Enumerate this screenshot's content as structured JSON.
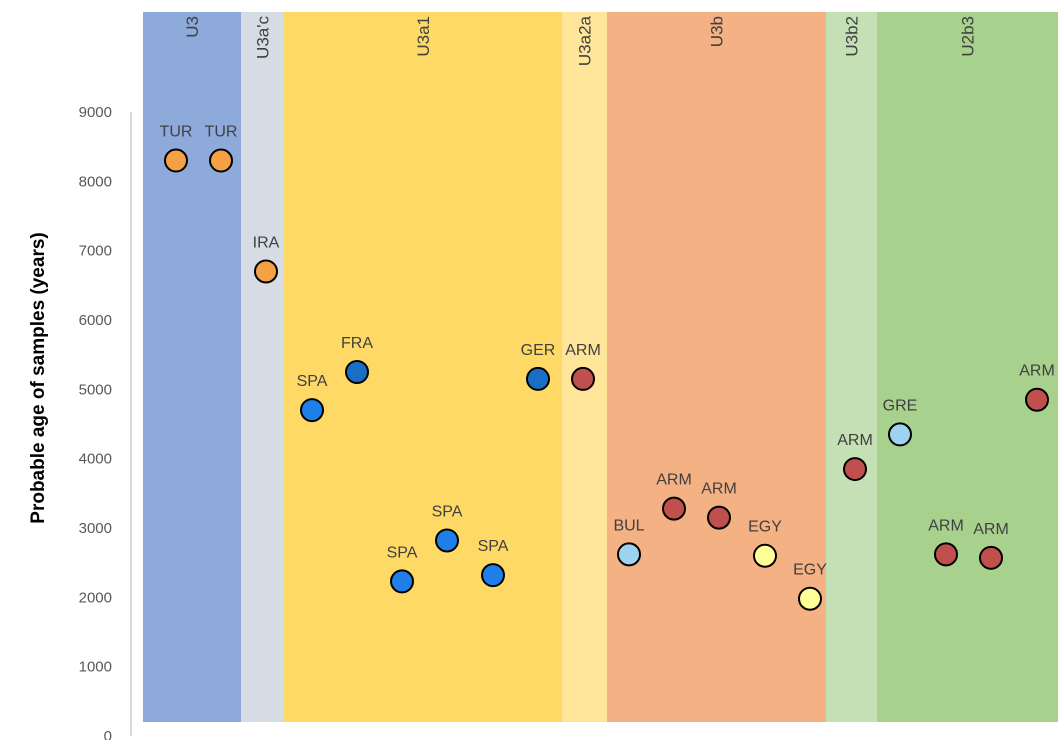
{
  "chart_data": {
    "type": "scatter",
    "title": "",
    "xlabel": "",
    "ylabel": "Probable age of samples (years)",
    "ylim": [
      0,
      9000
    ],
    "yticks": [
      0,
      1000,
      2000,
      3000,
      4000,
      5000,
      6000,
      7000,
      8000,
      9000
    ],
    "grid": false,
    "legend": "none",
    "haplogroups": [
      {
        "name": "U3",
        "color": "#8eaadb"
      },
      {
        "name": "U3a'c",
        "color": "#d6dce4"
      },
      {
        "name": "U3a1",
        "color": "#ffd966"
      },
      {
        "name": "U3a2a",
        "color": "#ffe599"
      },
      {
        "name": "U3b",
        "color": "#f4b183"
      },
      {
        "name": "U3b2",
        "color": "#c5e0b4"
      },
      {
        "name": "U2b3",
        "color": "#a9d18e"
      }
    ],
    "points": [
      {
        "label": "TUR",
        "haplogroup": "U3",
        "y": 8300,
        "color": "#f4a145"
      },
      {
        "label": "TUR",
        "haplogroup": "U3",
        "y": 8300,
        "color": "#f4a145"
      },
      {
        "label": "IRA",
        "haplogroup": "U3a'c",
        "y": 6700,
        "color": "#f4a145"
      },
      {
        "label": "SPA",
        "haplogroup": "U3a1",
        "y": 4700,
        "color": "#1f7fe8"
      },
      {
        "label": "FRA",
        "haplogroup": "U3a1",
        "y": 5250,
        "color": "#1a6fc4"
      },
      {
        "label": "SPA",
        "haplogroup": "U3a1",
        "y": 2230,
        "color": "#1f7fe8"
      },
      {
        "label": "SPA",
        "haplogroup": "U3a1",
        "y": 2820,
        "color": "#1f7fe8"
      },
      {
        "label": "SPA",
        "haplogroup": "U3a1",
        "y": 2320,
        "color": "#1f7fe8"
      },
      {
        "label": "GER",
        "haplogroup": "U3a1",
        "y": 5150,
        "color": "#1a6fc4"
      },
      {
        "label": "ARM",
        "haplogroup": "U3a2a",
        "y": 5150,
        "color": "#c0504d"
      },
      {
        "label": "BUL",
        "haplogroup": "U3b",
        "y": 2620,
        "color": "#9dd3f0"
      },
      {
        "label": "ARM",
        "haplogroup": "U3b",
        "y": 3280,
        "color": "#c0504d"
      },
      {
        "label": "ARM",
        "haplogroup": "U3b",
        "y": 3150,
        "color": "#c0504d"
      },
      {
        "label": "EGY",
        "haplogroup": "U3b",
        "y": 2600,
        "color": "#ffff99"
      },
      {
        "label": "EGY",
        "haplogroup": "U3b",
        "y": 1980,
        "color": "#ffff99"
      },
      {
        "label": "ARM",
        "haplogroup": "U3b2",
        "y": 3850,
        "color": "#c0504d"
      },
      {
        "label": "GRE",
        "haplogroup": "U2b3",
        "y": 4350,
        "color": "#9dd3f0"
      },
      {
        "label": "ARM",
        "haplogroup": "U2b3",
        "y": 2620,
        "color": "#c0504d"
      },
      {
        "label": "ARM",
        "haplogroup": "U2b3",
        "y": 2570,
        "color": "#c0504d"
      },
      {
        "label": "ARM",
        "haplogroup": "U2b3",
        "y": 4850,
        "color": "#c0504d"
      }
    ]
  }
}
